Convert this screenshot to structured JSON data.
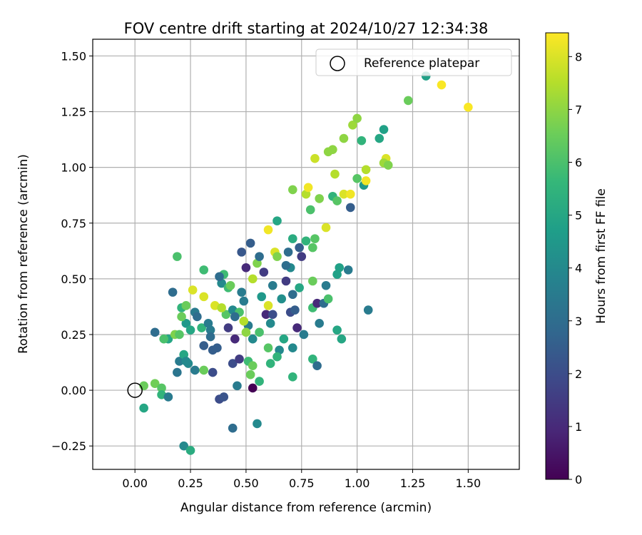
{
  "chart_data": {
    "type": "scatter",
    "title": "FOV centre drift starting at 2024/10/27 12:34:38",
    "xlabel": "Angular distance from reference (arcmin)",
    "ylabel": "Rotation from reference (arcmin)",
    "xlim": [
      -0.19,
      1.73
    ],
    "ylim": [
      -0.355,
      1.575
    ],
    "xticks": [
      0.0,
      0.25,
      0.5,
      0.75,
      1.0,
      1.25,
      1.5
    ],
    "xtick_labels": [
      "0.00",
      "0.25",
      "0.50",
      "0.75",
      "1.00",
      "1.25",
      "1.50"
    ],
    "yticks": [
      -0.25,
      0.0,
      0.25,
      0.5,
      0.75,
      1.0,
      1.25,
      1.5
    ],
    "ytick_labels": [
      "−0.25",
      "0.00",
      "0.25",
      "0.50",
      "0.75",
      "1.00",
      "1.25",
      "1.50"
    ],
    "grid": true,
    "legend": {
      "placement": "top-right",
      "entries": [
        "Reference platepar"
      ]
    },
    "reference_point": {
      "x": 0.0,
      "y": 0.0
    },
    "colorbar": {
      "label": "Hours from first FF file",
      "colormap": "viridis",
      "range": [
        0,
        8.45
      ],
      "ticks": [
        0,
        1,
        2,
        3,
        4,
        5,
        6,
        7,
        8
      ],
      "tick_labels": [
        "0",
        "1",
        "2",
        "3",
        "4",
        "5",
        "6",
        "7",
        "8"
      ]
    },
    "points": [
      [
        0.04,
        0.02,
        6.5
      ],
      [
        0.04,
        -0.08,
        5.0
      ],
      [
        0.09,
        0.03,
        6.6
      ],
      [
        0.12,
        0.01,
        6.2
      ],
      [
        0.12,
        -0.02,
        5.5
      ],
      [
        0.15,
        -0.03,
        3.5
      ],
      [
        0.09,
        0.26,
        3.0
      ],
      [
        0.15,
        0.23,
        5.0
      ],
      [
        0.17,
        0.44,
        3.0
      ],
      [
        0.18,
        0.25,
        6.8
      ],
      [
        0.19,
        0.08,
        3.3
      ],
      [
        0.2,
        0.13,
        3.5
      ],
      [
        0.21,
        0.37,
        5.5
      ],
      [
        0.23,
        0.38,
        6.5
      ],
      [
        0.22,
        0.16,
        5.0
      ],
      [
        0.23,
        0.3,
        4.5
      ],
      [
        0.24,
        0.12,
        4.0
      ],
      [
        0.25,
        0.27,
        5.0
      ],
      [
        0.27,
        0.35,
        3.5
      ],
      [
        0.28,
        0.33,
        3.0
      ],
      [
        0.3,
        0.28,
        5.5
      ],
      [
        0.31,
        0.2,
        2.5
      ],
      [
        0.33,
        0.3,
        3.5
      ],
      [
        0.34,
        0.27,
        3.5
      ],
      [
        0.35,
        0.18,
        2.5
      ],
      [
        0.35,
        0.08,
        2.0
      ],
      [
        0.37,
        0.19,
        2.5
      ],
      [
        0.39,
        0.48,
        4.0
      ],
      [
        0.4,
        0.52,
        5.8
      ],
      [
        0.41,
        0.34,
        6.2
      ],
      [
        0.42,
        0.46,
        5.8
      ],
      [
        0.42,
        0.28,
        1.5
      ],
      [
        0.44,
        0.36,
        4.0
      ],
      [
        0.45,
        0.23,
        1.0
      ],
      [
        0.44,
        0.12,
        2.0
      ],
      [
        0.47,
        0.14,
        1.5
      ],
      [
        0.49,
        0.4,
        3.5
      ],
      [
        0.48,
        0.62,
        2.3
      ],
      [
        0.5,
        0.55,
        1.0
      ],
      [
        0.51,
        0.29,
        3.5
      ],
      [
        0.52,
        0.66,
        2.5
      ],
      [
        0.53,
        0.5,
        7.5
      ],
      [
        0.53,
        0.23,
        4.0
      ],
      [
        0.51,
        0.13,
        5.8
      ],
      [
        0.52,
        0.07,
        6.5
      ],
      [
        0.53,
        0.01,
        0.0
      ],
      [
        0.55,
        0.57,
        6.8
      ],
      [
        0.56,
        0.6,
        3.0
      ],
      [
        0.57,
        0.42,
        4.5
      ],
      [
        0.56,
        0.26,
        6.0
      ],
      [
        0.58,
        0.53,
        1.5
      ],
      [
        0.6,
        0.72,
        8.3
      ],
      [
        0.6,
        0.38,
        8.0
      ],
      [
        0.61,
        0.3,
        4.0
      ],
      [
        0.6,
        0.19,
        6.2
      ],
      [
        0.62,
        0.47,
        3.5
      ],
      [
        0.63,
        0.62,
        8.0
      ],
      [
        0.64,
        0.76,
        5.0
      ],
      [
        0.64,
        0.6,
        6.8
      ],
      [
        0.65,
        0.18,
        4.0
      ],
      [
        0.66,
        0.41,
        4.2
      ],
      [
        0.67,
        0.23,
        5.0
      ],
      [
        0.68,
        0.49,
        1.5
      ],
      [
        0.69,
        0.62,
        3.0
      ],
      [
        0.7,
        0.55,
        4.0
      ],
      [
        0.71,
        0.9,
        6.8
      ],
      [
        0.7,
        0.35,
        2.0
      ],
      [
        0.71,
        0.43,
        3.0
      ],
      [
        0.72,
        0.36,
        2.5
      ],
      [
        0.71,
        0.19,
        4.0
      ],
      [
        0.71,
        0.06,
        5.5
      ],
      [
        0.73,
        0.28,
        1.0
      ],
      [
        0.74,
        0.46,
        5.0
      ],
      [
        0.75,
        0.6,
        1.5
      ],
      [
        0.76,
        0.25,
        3.5
      ],
      [
        0.77,
        0.67,
        5.5
      ],
      [
        0.77,
        0.88,
        7.5
      ],
      [
        0.78,
        0.91,
        8.3
      ],
      [
        0.79,
        0.81,
        6.0
      ],
      [
        0.8,
        0.64,
        6.2
      ],
      [
        0.8,
        0.14,
        5.5
      ],
      [
        0.8,
        0.49,
        6.5
      ],
      [
        0.8,
        0.37,
        5.8
      ],
      [
        0.81,
        0.68,
        6.2
      ],
      [
        0.81,
        1.04,
        7.8
      ],
      [
        0.82,
        0.39,
        1.0
      ],
      [
        0.82,
        0.11,
        3.0
      ],
      [
        0.83,
        0.86,
        6.8
      ],
      [
        0.83,
        0.3,
        3.5
      ],
      [
        0.85,
        0.39,
        3.0
      ],
      [
        0.86,
        0.47,
        3.5
      ],
      [
        0.86,
        0.73,
        8.0
      ],
      [
        0.87,
        0.41,
        6.0
      ],
      [
        0.87,
        1.07,
        7.0
      ],
      [
        0.89,
        0.87,
        5.5
      ],
      [
        0.89,
        1.08,
        7.0
      ],
      [
        0.9,
        0.97,
        7.5
      ],
      [
        0.91,
        0.85,
        6.2
      ],
      [
        0.91,
        0.52,
        4.8
      ],
      [
        0.91,
        0.27,
        5.0
      ],
      [
        0.92,
        0.55,
        4.8
      ],
      [
        0.93,
        0.23,
        5.0
      ],
      [
        0.94,
        1.13,
        7.0
      ],
      [
        0.94,
        0.88,
        8.0
      ],
      [
        0.96,
        0.54,
        3.5
      ],
      [
        0.97,
        0.82,
        2.5
      ],
      [
        0.97,
        0.88,
        8.3
      ],
      [
        0.98,
        1.19,
        7.2
      ],
      [
        1.0,
        1.22,
        7.0
      ],
      [
        1.0,
        0.95,
        6.2
      ],
      [
        1.02,
        1.12,
        5.5
      ],
      [
        1.03,
        0.92,
        4.5
      ],
      [
        1.04,
        0.99,
        7.5
      ],
      [
        1.04,
        0.94,
        8.3
      ],
      [
        1.05,
        0.36,
        3.5
      ],
      [
        1.1,
        1.13,
        5.0
      ],
      [
        1.12,
        1.17,
        4.8
      ],
      [
        1.13,
        1.04,
        8.0
      ],
      [
        1.12,
        1.02,
        7.2
      ],
      [
        1.14,
        1.01,
        6.8
      ],
      [
        1.23,
        1.3,
        6.5
      ],
      [
        1.31,
        1.41,
        4.8
      ],
      [
        1.38,
        1.37,
        8.4
      ],
      [
        1.5,
        1.27,
        8.4
      ],
      [
        0.22,
        -0.25,
        4.0
      ],
      [
        0.25,
        -0.27,
        5.2
      ],
      [
        0.38,
        -0.04,
        2.0
      ],
      [
        0.4,
        -0.03,
        2.2
      ],
      [
        0.44,
        -0.17,
        3.0
      ],
      [
        0.46,
        0.02,
        3.5
      ],
      [
        0.55,
        -0.15,
        4.0
      ],
      [
        0.56,
        0.04,
        5.5
      ],
      [
        0.19,
        0.6,
        6.0
      ],
      [
        0.26,
        0.45,
        8.0
      ],
      [
        0.31,
        0.42,
        8.0
      ],
      [
        0.36,
        0.38,
        8.0
      ],
      [
        0.39,
        0.37,
        7.5
      ],
      [
        0.43,
        0.47,
        6.5
      ],
      [
        0.47,
        0.35,
        6.0
      ],
      [
        0.49,
        0.31,
        7.5
      ],
      [
        0.5,
        0.26,
        7.0
      ],
      [
        0.53,
        0.11,
        6.5
      ],
      [
        0.31,
        0.54,
        5.8
      ],
      [
        0.31,
        0.09,
        6.5
      ],
      [
        0.2,
        0.25,
        6.2
      ],
      [
        0.13,
        0.23,
        6.0
      ],
      [
        0.38,
        0.51,
        3.0
      ],
      [
        0.45,
        0.33,
        3.0
      ],
      [
        0.48,
        0.44,
        3.5
      ],
      [
        0.59,
        0.34,
        1.0
      ],
      [
        0.62,
        0.34,
        2.0
      ],
      [
        0.68,
        0.56,
        3.0
      ],
      [
        0.71,
        0.68,
        5.2
      ],
      [
        0.74,
        0.64,
        2.5
      ],
      [
        0.61,
        0.12,
        5.5
      ],
      [
        0.64,
        0.15,
        5.5
      ],
      [
        0.27,
        0.09,
        3.5
      ],
      [
        0.23,
        0.13,
        4.0
      ],
      [
        0.34,
        0.24,
        3.0
      ],
      [
        0.21,
        0.33,
        6.5
      ]
    ]
  }
}
